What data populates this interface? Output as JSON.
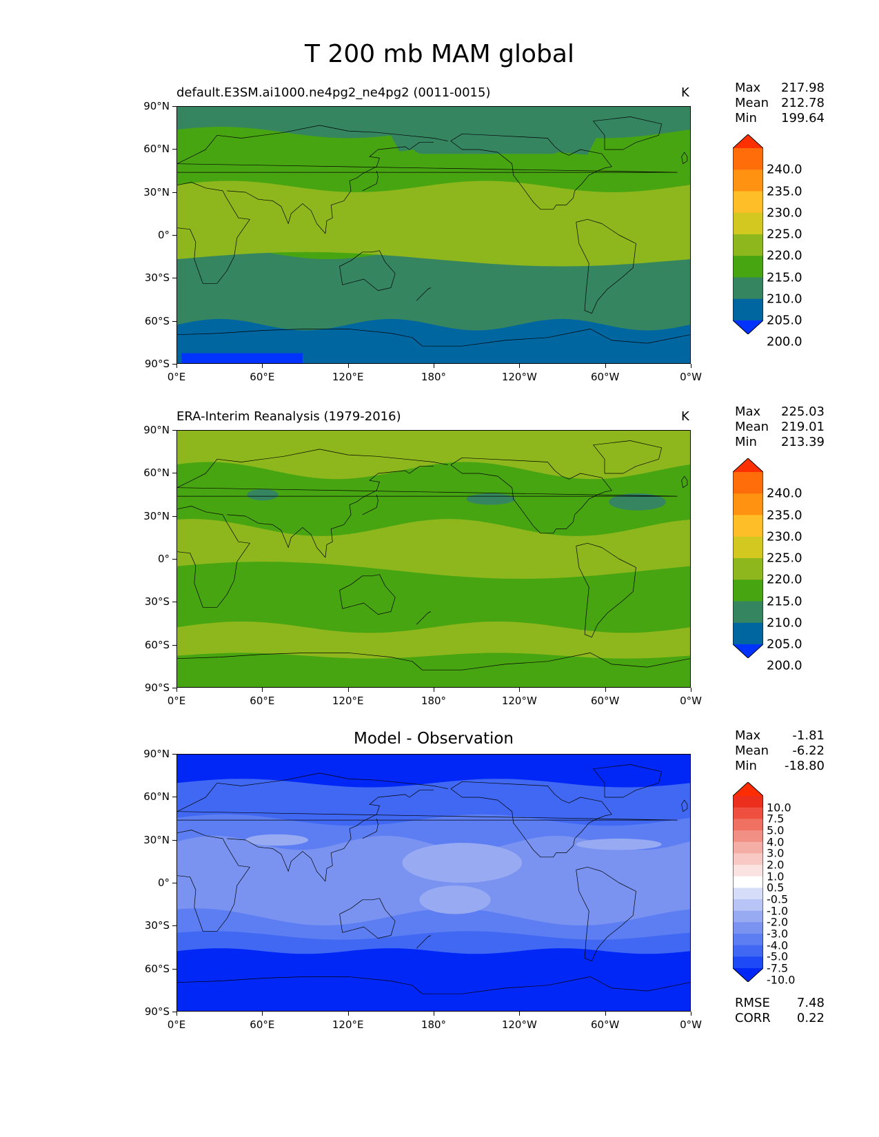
{
  "figure": {
    "title": "T 200 mb MAM global"
  },
  "axes": {
    "lat_labels": [
      "90°N",
      "60°N",
      "30°N",
      "0°",
      "30°S",
      "60°S",
      "90°S"
    ],
    "lon_labels": [
      "0°E",
      "60°E",
      "120°E",
      "180°",
      "120°W",
      "60°W",
      "0°W"
    ]
  },
  "panels": [
    {
      "title": "default.E3SM.ai1000.ne4pg2_ne4pg2 (0011-0015)",
      "units": "K",
      "stats": [
        [
          "Max",
          "217.98"
        ],
        [
          "Mean",
          "212.78"
        ],
        [
          "Min",
          "199.64"
        ]
      ],
      "colorbar": [
        "240.0",
        "235.0",
        "230.0",
        "225.0",
        "220.0",
        "215.0",
        "210.0",
        "205.0",
        "200.0"
      ]
    },
    {
      "title": "ERA-Interim Reanalysis (1979-2016)",
      "units": "K",
      "stats": [
        [
          "Max",
          "225.03"
        ],
        [
          "Mean",
          "219.01"
        ],
        [
          "Min",
          "213.39"
        ]
      ],
      "colorbar": [
        "240.0",
        "235.0",
        "230.0",
        "225.0",
        "220.0",
        "215.0",
        "210.0",
        "205.0",
        "200.0"
      ]
    },
    {
      "title": "Model - Observation",
      "units": "",
      "stats": [
        [
          "Max",
          "-1.81"
        ],
        [
          "Mean",
          "-6.22"
        ],
        [
          "Min",
          "-18.80"
        ]
      ],
      "colorbar": [
        "10.0",
        "7.5",
        "5.0",
        "4.0",
        "3.0",
        "2.0",
        "1.0",
        "0.5",
        "-0.5",
        "-1.0",
        "-2.0",
        "-3.0",
        "-4.0",
        "-5.0",
        "-7.5",
        "-10.0"
      ],
      "footer": [
        [
          "RMSE",
          "7.48"
        ],
        [
          "CORR",
          "0.22"
        ]
      ]
    }
  ],
  "colors": {
    "abs_scale": [
      "#0033ff",
      "#0066a0",
      "#358561",
      "#48a512",
      "#8db71c",
      "#d2c81f",
      "#fdbe28",
      "#ff9311",
      "#ff6d0a",
      "#ff3000"
    ],
    "diff_scale": [
      "#0027f5",
      "#1e4af5",
      "#4068f3",
      "#5c7ef2",
      "#7a93f1",
      "#97aaf2",
      "#b7c4f5",
      "#d6ddf9",
      "#ffffff",
      "#fbe3e1",
      "#f8c9c4",
      "#f5aea6",
      "#f28f85",
      "#f07062",
      "#ee4f3e",
      "#ec2e1c",
      "#ff2d00"
    ]
  }
}
